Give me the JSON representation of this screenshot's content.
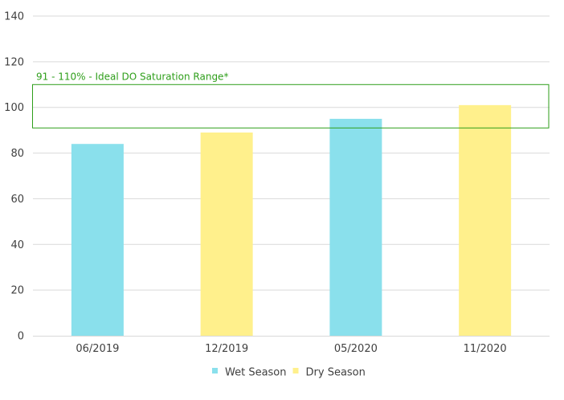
{
  "chart_data": {
    "type": "bar",
    "categories": [
      "06/2019",
      "12/2019",
      "05/2020",
      "11/2020"
    ],
    "values": [
      84,
      89,
      95,
      101
    ],
    "bar_series": [
      "Wet Season",
      "Dry Season",
      "Wet Season",
      "Dry Season"
    ],
    "series": [
      {
        "name": "Wet Season",
        "color": "#8ae0ec"
      },
      {
        "name": "Dry Season",
        "color": "#fff08c"
      }
    ],
    "ylim": [
      0,
      140
    ],
    "yticks": [
      0,
      20,
      40,
      60,
      80,
      100,
      120,
      140
    ],
    "grid": true,
    "legend_position": "bottom",
    "band": {
      "label": "91 - 110% - Ideal DO Saturation Range*",
      "low": 91,
      "high": 110,
      "color": "#2e9e1a"
    },
    "title": "",
    "xlabel": "",
    "ylabel": ""
  }
}
